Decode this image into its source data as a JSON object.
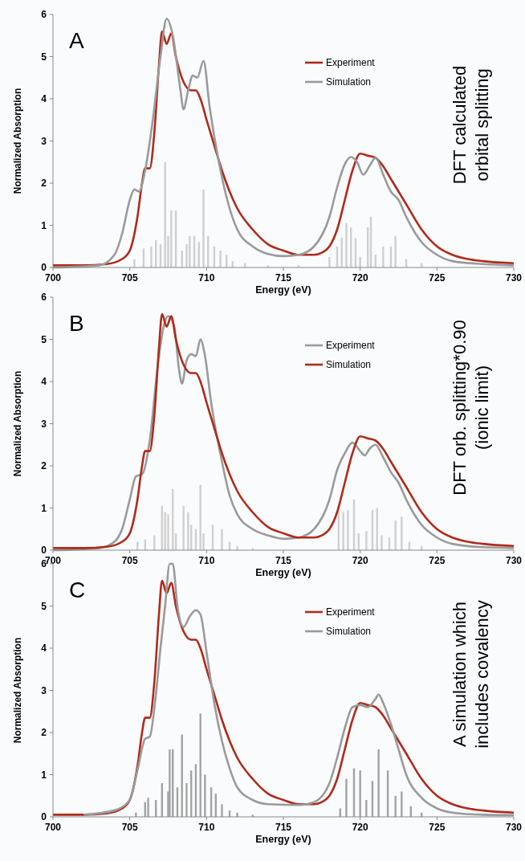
{
  "chart_data": [
    {
      "type": "line",
      "title": "A",
      "xlabel": "Energy (eV)",
      "ylabel": "Normalized Absorption",
      "annotations": [
        "DFT calculated",
        "orbital splitting"
      ],
      "xlim": [
        700,
        730
      ],
      "xticks": [
        700,
        705,
        710,
        715,
        720,
        725,
        730
      ],
      "ylim": [
        0,
        6
      ],
      "yticks": [
        0,
        1,
        2,
        3,
        4,
        5,
        6
      ],
      "legend": "top right",
      "series": [
        {
          "type": "bar",
          "color": "#cfcfcf",
          "x": [
            705.3,
            705.9,
            706.4,
            706.7,
            707,
            707.3,
            707.5,
            707.7,
            708,
            708.4,
            708.7,
            708.9,
            709.2,
            709.5,
            709.8,
            710.1,
            710.5,
            710.9,
            711.3,
            711.7,
            712.5,
            714,
            716,
            718,
            718.5,
            718.8,
            719.1,
            719.4,
            719.7,
            720,
            720.5,
            720.7,
            721,
            721.5,
            722,
            722.3,
            723,
            724
          ],
          "values": [
            0.2,
            0.45,
            0.5,
            0.65,
            0.55,
            2.5,
            0.75,
            1.35,
            1.35,
            0.4,
            0.55,
            0.75,
            0.75,
            0.6,
            1.85,
            0.75,
            0.5,
            0.4,
            0.3,
            0.15,
            0.1,
            0.05,
            0.05,
            0.25,
            0.5,
            0.7,
            1.05,
            0.95,
            0.7,
            0.25,
            0.95,
            1.2,
            0.3,
            0.5,
            0.5,
            0.75,
            0.2,
            0.1
          ]
        },
        {
          "type": "line",
          "name": "Experiment",
          "color": "#b02a1a",
          "x": [
            700,
            702,
            703.5,
            704.5,
            705,
            705.5,
            705.8,
            706,
            706.3,
            706.6,
            706.9,
            707.1,
            707.4,
            707.7,
            708,
            708.5,
            709,
            709.3,
            709.6,
            710,
            710.5,
            711,
            711.5,
            712,
            713,
            714,
            715,
            716,
            717,
            717.5,
            718,
            718.5,
            719,
            719.5,
            720,
            720.5,
            721,
            721.5,
            722,
            722.5,
            723,
            724,
            725,
            726,
            727,
            728,
            730
          ],
          "values": [
            0.05,
            0.05,
            0.08,
            0.2,
            0.4,
            1.2,
            2.0,
            2.35,
            2.35,
            3.2,
            4.8,
            5.6,
            5.3,
            5.55,
            5.0,
            4.4,
            4.2,
            4.2,
            4.0,
            3.5,
            2.9,
            2.3,
            1.8,
            1.4,
            0.9,
            0.55,
            0.4,
            0.3,
            0.3,
            0.35,
            0.5,
            0.9,
            1.6,
            2.3,
            2.7,
            2.65,
            2.6,
            2.4,
            2.1,
            1.8,
            1.5,
            0.9,
            0.5,
            0.3,
            0.2,
            0.15,
            0.1
          ]
        },
        {
          "type": "line",
          "name": "Simulation",
          "color": "#9a9a9a",
          "x": [
            700,
            703,
            704,
            704.5,
            705,
            705.3,
            705.6,
            706,
            706.5,
            707,
            707.4,
            707.8,
            708.3,
            708.5,
            708.8,
            709.1,
            709.4,
            709.8,
            710.2,
            710.8,
            711.5,
            712,
            713,
            714,
            715,
            716,
            717,
            718,
            718.5,
            719,
            719.4,
            719.8,
            720.2,
            720.6,
            721,
            721.5,
            722,
            722.5,
            723,
            724,
            725,
            726,
            728,
            730
          ],
          "values": [
            0,
            0.05,
            0.3,
            0.8,
            1.6,
            1.85,
            1.8,
            2.3,
            3.5,
            5.0,
            5.9,
            5.5,
            4.2,
            3.75,
            4.2,
            4.55,
            4.5,
            4.9,
            3.8,
            2.5,
            1.4,
            0.9,
            0.5,
            0.32,
            0.27,
            0.3,
            0.5,
            1.2,
            1.9,
            2.45,
            2.62,
            2.5,
            2.2,
            2.4,
            2.6,
            2.2,
            1.8,
            1.6,
            1.2,
            0.6,
            0.3,
            0.15,
            0.08,
            0.05
          ]
        }
      ]
    },
    {
      "type": "line",
      "title": "B",
      "xlabel": "Energy (eV)",
      "ylabel": "Normalized Absorption",
      "annotations": [
        "DFT orb. splitting*0.90",
        "(ionic limit)"
      ],
      "xlim": [
        700,
        730
      ],
      "xticks": [
        700,
        705,
        710,
        715,
        720,
        725,
        730
      ],
      "ylim": [
        0,
        6
      ],
      "yticks": [
        0,
        1,
        2,
        3,
        4,
        5,
        6
      ],
      "legend": "top right",
      "series": [
        {
          "type": "bar",
          "color": "#cfcfcf",
          "x": [
            705.5,
            706,
            706.6,
            707.1,
            707.3,
            707.5,
            707.8,
            708,
            708.5,
            708.8,
            709,
            709.3,
            709.6,
            709.8,
            710.4,
            711,
            711.5,
            712,
            713,
            718.6,
            718.9,
            719.2,
            719.6,
            719.9,
            720.4,
            720.8,
            721.1,
            721.4,
            721.9,
            722.3,
            722.7,
            723.2,
            724
          ],
          "values": [
            0.2,
            0.25,
            0.35,
            1.05,
            0.9,
            0.85,
            1.45,
            0.4,
            1.05,
            0.9,
            0.6,
            0.5,
            1.55,
            0.4,
            0.6,
            0.5,
            0.2,
            0.1,
            0.05,
            0.9,
            0.9,
            0.95,
            1.2,
            0.4,
            0.45,
            0.95,
            1.0,
            0.35,
            0.3,
            0.7,
            0.8,
            0.2,
            0.1
          ]
        },
        {
          "type": "line",
          "name": "Experiment",
          "color": "#9a9a9a",
          "x": [
            700,
            703,
            704,
            704.5,
            705,
            705.4,
            705.8,
            706.3,
            706.8,
            707.2,
            707.5,
            707.9,
            708.2,
            708.4,
            708.7,
            709,
            709.3,
            709.6,
            709.9,
            710.3,
            711,
            711.5,
            712,
            713,
            714,
            715,
            716,
            717,
            718,
            718.5,
            719,
            719.5,
            720,
            720.3,
            720.6,
            721,
            721.5,
            722,
            722.5,
            723,
            724,
            725,
            726,
            728,
            730
          ],
          "values": [
            0,
            0.05,
            0.2,
            0.5,
            1.2,
            1.75,
            1.8,
            2.6,
            4.3,
            5.3,
            5.55,
            5.3,
            4.3,
            3.95,
            4.5,
            4.65,
            4.6,
            5.0,
            4.6,
            3.5,
            2.1,
            1.3,
            0.85,
            0.5,
            0.35,
            0.27,
            0.3,
            0.5,
            1.2,
            1.9,
            2.3,
            2.55,
            2.35,
            2.25,
            2.4,
            2.5,
            2.2,
            1.85,
            1.6,
            1.2,
            0.6,
            0.3,
            0.15,
            0.07,
            0.05
          ]
        },
        {
          "type": "line",
          "name": "Simulation",
          "color": "#b02a1a",
          "x": [
            700,
            702,
            703.5,
            704.5,
            705,
            705.5,
            705.8,
            706,
            706.3,
            706.6,
            706.9,
            707.1,
            707.4,
            707.7,
            708,
            708.5,
            709,
            709.3,
            709.6,
            710,
            710.5,
            711,
            711.5,
            712,
            713,
            714,
            715,
            716,
            717,
            717.5,
            718,
            718.5,
            719,
            719.5,
            720,
            720.5,
            721,
            721.5,
            722,
            722.5,
            723,
            724,
            725,
            726,
            727,
            728,
            730
          ],
          "values": [
            0.05,
            0.05,
            0.08,
            0.2,
            0.4,
            1.2,
            2.0,
            2.35,
            2.35,
            3.2,
            4.8,
            5.6,
            5.3,
            5.55,
            5.0,
            4.4,
            4.2,
            4.2,
            4.0,
            3.5,
            2.9,
            2.3,
            1.8,
            1.4,
            0.9,
            0.55,
            0.4,
            0.3,
            0.3,
            0.35,
            0.5,
            0.9,
            1.6,
            2.3,
            2.7,
            2.65,
            2.6,
            2.4,
            2.1,
            1.8,
            1.5,
            0.9,
            0.5,
            0.3,
            0.2,
            0.15,
            0.1
          ]
        }
      ]
    },
    {
      "type": "line",
      "title": "C",
      "xlabel": "Energy (eV)",
      "ylabel": "Normalized Absorption",
      "annotations": [
        "A simulation which",
        "includes covalency"
      ],
      "xlim": [
        700,
        730
      ],
      "xticks": [
        700,
        705,
        710,
        715,
        720,
        725,
        730
      ],
      "ylim": [
        0,
        6
      ],
      "yticks": [
        0,
        1,
        2,
        3,
        4,
        5,
        6
      ],
      "legend": "top right",
      "series": [
        {
          "type": "bar",
          "color": "#a3a3a3",
          "x": [
            705.4,
            706,
            706.2,
            706.7,
            707.1,
            707.5,
            707.6,
            707.8,
            708.1,
            708.4,
            708.7,
            709,
            709.3,
            709.6,
            709.9,
            710.3,
            710.6,
            711,
            711.5,
            712,
            713,
            718.7,
            719.1,
            719.6,
            720,
            720.4,
            720.8,
            721.2,
            721.8,
            722.3,
            722.7,
            723.3,
            724
          ],
          "values": [
            0.1,
            0.35,
            0.45,
            0.4,
            0.8,
            0.6,
            1.6,
            1.6,
            0.7,
            1.95,
            0.8,
            1.1,
            1.25,
            2.45,
            1.0,
            0.7,
            0.55,
            0.3,
            0.15,
            0.1,
            0.05,
            0.2,
            0.9,
            1.15,
            1.1,
            0.4,
            0.85,
            1.6,
            1.1,
            0.5,
            0.6,
            0.25,
            0.1
          ]
        },
        {
          "type": "line",
          "name": "Experiment",
          "color": "#b02a1a",
          "x": [
            700,
            702,
            703.5,
            704.5,
            705,
            705.5,
            705.8,
            706,
            706.3,
            706.6,
            706.9,
            707.1,
            707.4,
            707.7,
            708,
            708.5,
            709,
            709.3,
            709.6,
            710,
            710.5,
            711,
            711.5,
            712,
            713,
            714,
            715,
            716,
            717,
            717.5,
            718,
            718.5,
            719,
            719.5,
            720,
            720.5,
            721,
            721.5,
            722,
            722.5,
            723,
            724,
            725,
            726,
            727,
            728,
            730
          ],
          "values": [
            0.05,
            0.05,
            0.08,
            0.2,
            0.4,
            1.2,
            2.0,
            2.35,
            2.35,
            3.2,
            4.8,
            5.6,
            5.3,
            5.55,
            5.0,
            4.4,
            4.2,
            4.2,
            4.0,
            3.5,
            2.9,
            2.3,
            1.8,
            1.4,
            0.9,
            0.55,
            0.4,
            0.3,
            0.3,
            0.35,
            0.5,
            0.9,
            1.6,
            2.3,
            2.7,
            2.65,
            2.6,
            2.4,
            2.1,
            1.8,
            1.5,
            0.9,
            0.5,
            0.3,
            0.2,
            0.15,
            0.1
          ]
        },
        {
          "type": "line",
          "name": "Simulation",
          "color": "#9a9a9a",
          "x": [
            702,
            704,
            705,
            705.5,
            706,
            706.3,
            706.7,
            707,
            707.3,
            707.6,
            707.8,
            708.1,
            708.5,
            708.9,
            709.3,
            709.6,
            710,
            710.5,
            711,
            711.5,
            712,
            713,
            714,
            716,
            717,
            718,
            718.5,
            719,
            719.5,
            720,
            720.5,
            721,
            721.2,
            721.5,
            722,
            722.5,
            723,
            724,
            725,
            726,
            728,
            730
          ],
          "values": [
            0.05,
            0.15,
            0.4,
            1.1,
            1.85,
            1.9,
            2.9,
            4.0,
            5.0,
            6.0,
            6.0,
            5.0,
            4.5,
            4.75,
            4.9,
            4.8,
            3.9,
            2.7,
            1.8,
            1.15,
            0.7,
            0.4,
            0.3,
            0.28,
            0.35,
            0.8,
            1.4,
            2.1,
            2.6,
            2.65,
            2.6,
            2.8,
            2.9,
            2.7,
            2.2,
            1.6,
            1.0,
            0.45,
            0.2,
            0.1,
            0.05,
            0.04
          ]
        }
      ]
    }
  ]
}
